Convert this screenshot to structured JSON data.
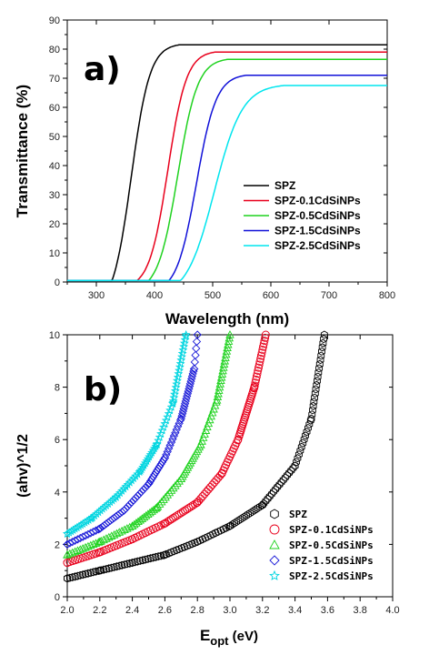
{
  "chart_data": [
    {
      "type": "line",
      "panel_label": "a)",
      "xlabel": "Wavelength (nm)",
      "ylabel": "Transmittance (%)",
      "xlim": [
        250,
        800
      ],
      "ylim": [
        0,
        90
      ],
      "xticks": [
        300,
        400,
        500,
        600,
        700,
        800
      ],
      "yticks": [
        0,
        10,
        20,
        30,
        40,
        50,
        60,
        70,
        80,
        90
      ],
      "legend_position": "bottom-right",
      "series": [
        {
          "name": "SPZ",
          "color": "#000000",
          "plateau": 81.5,
          "midpoint": 360,
          "edge": 327,
          "width": 16
        },
        {
          "name": "SPZ-0.1CdSiNPs",
          "color": "#e8001c",
          "plateau": 79,
          "midpoint": 423,
          "edge": 370,
          "width": 16
        },
        {
          "name": "SPZ-0.5CdSiNPs",
          "color": "#1fd21f",
          "plateau": 76.5,
          "midpoint": 440,
          "edge": 390,
          "width": 17
        },
        {
          "name": "SPZ-1.5CdSiNPs",
          "color": "#1010d8",
          "plateau": 71,
          "midpoint": 472,
          "edge": 425,
          "width": 17
        },
        {
          "name": "SPZ-2.5CdSiNPs",
          "color": "#00e5ee",
          "plateau": 67.5,
          "midpoint": 503,
          "edge": 445,
          "width": 24
        }
      ]
    },
    {
      "type": "scatter",
      "panel_label": "b)",
      "xlabel_main": "E",
      "xlabel_sub": "opt",
      "xlabel_unit": " (eV)",
      "ylabel": "(ahv)^1/2",
      "xlim": [
        2.0,
        4.0
      ],
      "ylim": [
        0,
        10
      ],
      "xticks": [
        2.0,
        2.2,
        2.4,
        2.6,
        2.8,
        3.0,
        3.2,
        3.4,
        3.6,
        3.8,
        4.0
      ],
      "yticks": [
        0,
        2,
        4,
        6,
        8,
        10
      ],
      "legend_position": "bottom-right",
      "series": [
        {
          "name": "SPZ",
          "color": "#000000",
          "marker": "hexagon",
          "points": [
            [
              2.0,
              0.7
            ],
            [
              2.2,
              1.0
            ],
            [
              2.4,
              1.3
            ],
            [
              2.6,
              1.6
            ],
            [
              2.8,
              2.1
            ],
            [
              3.0,
              2.7
            ],
            [
              3.2,
              3.5
            ],
            [
              3.4,
              5.0
            ],
            [
              3.5,
              6.8
            ],
            [
              3.58,
              10.0
            ]
          ]
        },
        {
          "name": "SPZ-0.1CdSiNPs",
          "color": "#e8001c",
          "marker": "circle",
          "points": [
            [
              2.0,
              1.3
            ],
            [
              2.2,
              1.7
            ],
            [
              2.4,
              2.2
            ],
            [
              2.6,
              2.8
            ],
            [
              2.8,
              3.6
            ],
            [
              2.95,
              4.7
            ],
            [
              3.05,
              6.0
            ],
            [
              3.15,
              8.0
            ],
            [
              3.22,
              10.0
            ]
          ]
        },
        {
          "name": "SPZ-0.5CdSiNPs",
          "color": "#1fd21f",
          "marker": "triangle",
          "points": [
            [
              2.0,
              1.6
            ],
            [
              2.2,
              2.1
            ],
            [
              2.4,
              2.7
            ],
            [
              2.55,
              3.4
            ],
            [
              2.7,
              4.5
            ],
            [
              2.82,
              5.8
            ],
            [
              2.92,
              7.5
            ],
            [
              3.0,
              10.0
            ]
          ]
        },
        {
          "name": "SPZ-1.5CdSiNPs",
          "color": "#1a1ad8",
          "marker": "diamond",
          "points": [
            [
              2.0,
              2.0
            ],
            [
              2.2,
              2.6
            ],
            [
              2.35,
              3.3
            ],
            [
              2.5,
              4.3
            ],
            [
              2.6,
              5.3
            ],
            [
              2.7,
              6.8
            ],
            [
              2.78,
              8.7
            ],
            [
              2.8,
              10.0
            ]
          ]
        },
        {
          "name": "SPZ-2.5CdSiNPs",
          "color": "#00d5e0",
          "marker": "star",
          "points": [
            [
              2.0,
              2.4
            ],
            [
              2.15,
              3.0
            ],
            [
              2.3,
              3.8
            ],
            [
              2.45,
              4.8
            ],
            [
              2.55,
              5.8
            ],
            [
              2.65,
              7.4
            ],
            [
              2.73,
              10.0
            ]
          ]
        }
      ]
    }
  ]
}
